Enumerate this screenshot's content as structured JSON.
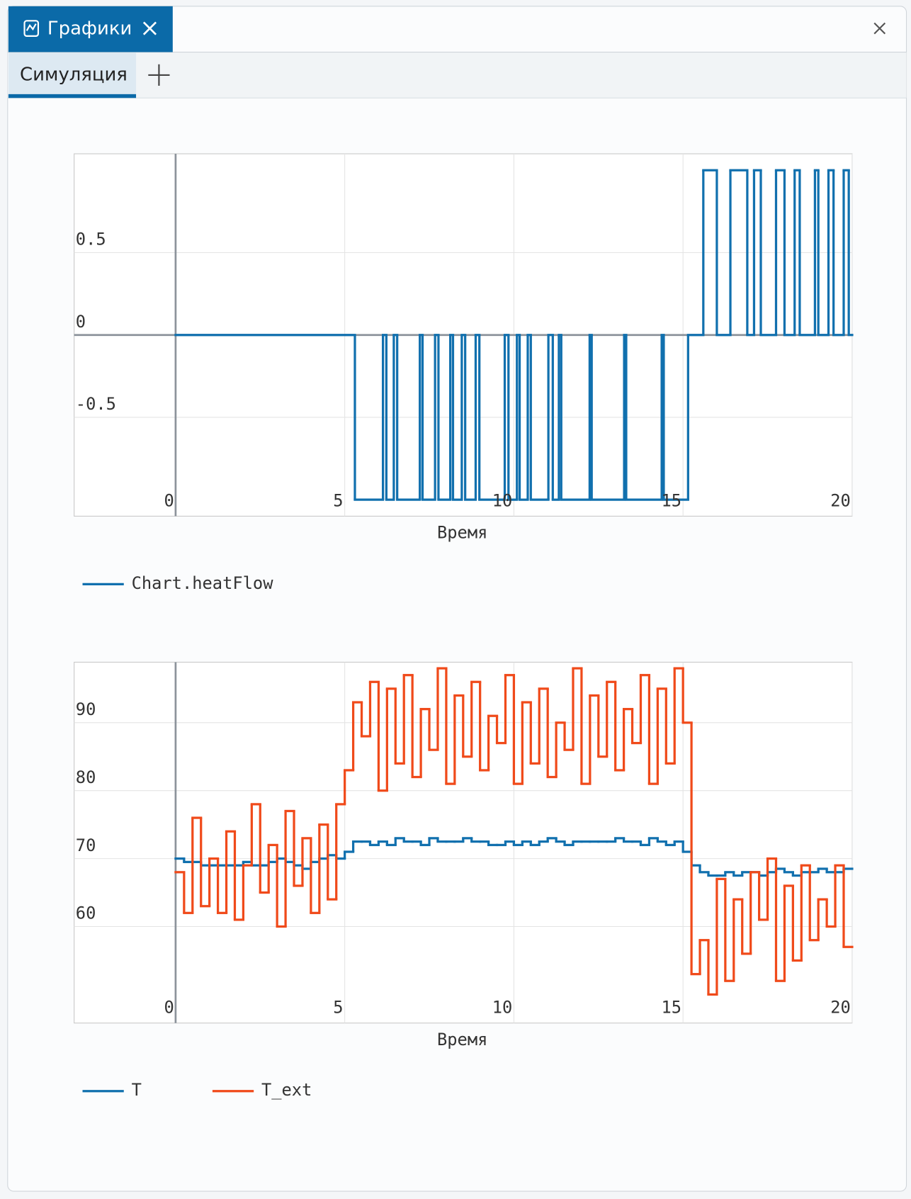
{
  "tabs": {
    "window_tab": "Графики",
    "sub_tab": "Симуляция"
  },
  "chart_data": [
    {
      "type": "step",
      "xlabel": "Время",
      "xlim": [
        -3,
        20
      ],
      "xticks": [
        0,
        5,
        10,
        15,
        20
      ],
      "ylim": [
        -1.1,
        1.1
      ],
      "yticks": [
        -0.5,
        0,
        0.5
      ],
      "grid": true,
      "x": [
        0,
        5.3,
        6.13,
        6.23,
        6.45,
        6.55,
        7.22,
        7.3,
        7.67,
        7.77,
        8.12,
        8.2,
        8.46,
        8.56,
        8.87,
        8.98,
        9.73,
        9.84,
        10.09,
        10.17,
        10.41,
        10.5,
        11.02,
        11.15,
        11.33,
        11.4,
        12.24,
        12.3,
        13.26,
        13.32,
        14.37,
        14.43,
        15.15,
        15.6,
        16.0,
        16.4,
        16.9,
        17.1,
        17.3,
        17.75,
        18.0,
        18.3,
        18.45,
        18.9,
        19.0,
        19.3,
        19.45,
        19.75,
        19.9
      ],
      "series": [
        {
          "name": "Chart.heatFlow",
          "color": "#1170ae",
          "values": [
            0,
            -1,
            0,
            -1,
            0,
            -1,
            0,
            -1,
            0,
            -1,
            0,
            -1,
            0,
            -1,
            0,
            -1,
            0,
            -1,
            0,
            -1,
            0,
            -1,
            0,
            -1,
            0,
            -1,
            0,
            -1,
            0,
            -1,
            0,
            -1,
            0,
            1,
            0,
            1,
            0,
            1,
            0,
            1,
            0,
            1,
            0,
            1,
            0,
            1,
            0,
            1,
            0
          ]
        }
      ]
    },
    {
      "type": "step",
      "xlabel": "Время",
      "xlim": [
        -3,
        20
      ],
      "xticks": [
        0,
        5,
        10,
        15,
        20
      ],
      "ylim": [
        45.8,
        98.9
      ],
      "yticks": [
        60,
        70,
        80,
        90
      ],
      "grid": true,
      "x": [
        0,
        0.25,
        0.5,
        0.75,
        1,
        1.25,
        1.5,
        1.75,
        2,
        2.25,
        2.5,
        2.75,
        3,
        3.25,
        3.5,
        3.75,
        4,
        4.25,
        4.5,
        4.75,
        5,
        5.25,
        5.5,
        5.75,
        6,
        6.25,
        6.5,
        6.75,
        7,
        7.25,
        7.5,
        7.75,
        8,
        8.25,
        8.5,
        8.75,
        9,
        9.25,
        9.5,
        9.75,
        10,
        10.25,
        10.5,
        10.75,
        11,
        11.25,
        11.5,
        11.75,
        12,
        12.25,
        12.5,
        12.75,
        13,
        13.25,
        13.5,
        13.75,
        14,
        14.25,
        14.5,
        14.75,
        15,
        15.25,
        15.5,
        15.75,
        16,
        16.25,
        16.5,
        16.75,
        17,
        17.25,
        17.5,
        17.75,
        18,
        18.25,
        18.5,
        18.75,
        19,
        19.25,
        19.5,
        19.75
      ],
      "series": [
        {
          "name": "T",
          "color": "#1170ae",
          "values": [
            70,
            69.5,
            69.5,
            69,
            69,
            69,
            69,
            69,
            69.5,
            69,
            69,
            69.5,
            70,
            69.5,
            69,
            68.5,
            69.5,
            70,
            70.5,
            70,
            71,
            72.5,
            72.5,
            72,
            72.5,
            72,
            73,
            72.5,
            72.5,
            72,
            73,
            72.5,
            72.5,
            72.5,
            73,
            72.5,
            72.5,
            72,
            72,
            72.5,
            72,
            72.5,
            72,
            72.5,
            73,
            72.5,
            72,
            72.5,
            72.5,
            72.5,
            72.5,
            72.5,
            73,
            72.5,
            72.5,
            72,
            73,
            72.5,
            72,
            72.5,
            71,
            69,
            68,
            67.5,
            67.5,
            68,
            67.5,
            68,
            68,
            67.5,
            68,
            68.5,
            68,
            67.5,
            68,
            68,
            68.5,
            68,
            68,
            68.5
          ]
        },
        {
          "name": "T_ext",
          "color": "#f04a1a",
          "values": [
            68,
            62,
            76,
            63,
            70,
            62,
            74,
            61,
            69,
            78,
            65,
            72,
            60,
            77,
            66,
            73,
            62,
            75,
            64,
            78,
            83,
            93,
            88,
            96,
            80,
            95,
            84,
            97,
            82,
            92,
            86,
            98,
            81,
            94,
            85,
            96,
            83,
            91,
            87,
            97,
            81,
            93,
            84,
            95,
            82,
            90,
            86,
            98,
            81,
            94,
            85,
            96,
            83,
            92,
            87,
            97,
            81,
            95,
            84,
            98,
            90,
            53,
            58,
            50,
            67,
            52,
            64,
            56,
            68,
            61,
            70,
            52,
            66,
            55,
            69,
            58,
            64,
            60,
            69,
            57
          ]
        }
      ]
    }
  ]
}
